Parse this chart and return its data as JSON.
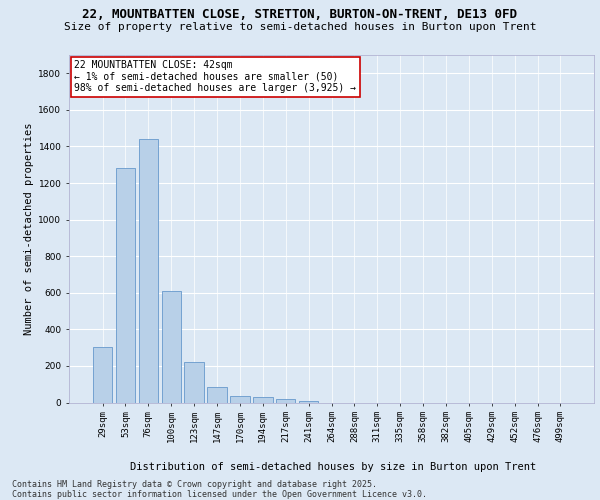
{
  "title_line1": "22, MOUNTBATTEN CLOSE, STRETTON, BURTON-ON-TRENT, DE13 0FD",
  "title_line2": "Size of property relative to semi-detached houses in Burton upon Trent",
  "xlabel": "Distribution of semi-detached houses by size in Burton upon Trent",
  "ylabel": "Number of semi-detached properties",
  "categories": [
    "29sqm",
    "53sqm",
    "76sqm",
    "100sqm",
    "123sqm",
    "147sqm",
    "170sqm",
    "194sqm",
    "217sqm",
    "241sqm",
    "264sqm",
    "288sqm",
    "311sqm",
    "335sqm",
    "358sqm",
    "382sqm",
    "405sqm",
    "429sqm",
    "452sqm",
    "476sqm",
    "499sqm"
  ],
  "values": [
    305,
    1280,
    1440,
    610,
    220,
    85,
    38,
    28,
    20,
    8,
    0,
    0,
    0,
    0,
    0,
    0,
    0,
    0,
    0,
    0,
    0
  ],
  "bar_color": "#b8d0e8",
  "bar_edge_color": "#6699cc",
  "annotation_text": "22 MOUNTBATTEN CLOSE: 42sqm\n← 1% of semi-detached houses are smaller (50)\n98% of semi-detached houses are larger (3,925) →",
  "annotation_box_color": "#ffffff",
  "annotation_border_color": "#cc0000",
  "ylim": [
    0,
    1900
  ],
  "yticks": [
    0,
    200,
    400,
    600,
    800,
    1000,
    1200,
    1400,
    1600,
    1800
  ],
  "background_color": "#dce8f4",
  "plot_bg_color": "#dce8f4",
  "grid_color": "#ffffff",
  "footer_text": "Contains HM Land Registry data © Crown copyright and database right 2025.\nContains public sector information licensed under the Open Government Licence v3.0.",
  "title_fontsize": 9,
  "subtitle_fontsize": 8,
  "axis_label_fontsize": 7.5,
  "tick_fontsize": 6.5,
  "annotation_fontsize": 7,
  "footer_fontsize": 6
}
